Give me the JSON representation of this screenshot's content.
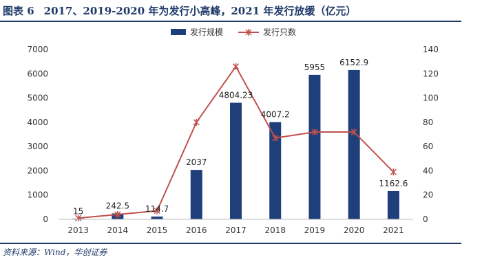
{
  "figure": {
    "number": "图表 6",
    "caption": "2017、2019-2020 年为发行小高峰，2021 年发行放缓（亿元）",
    "source": "资料来源：Wind，华创证券"
  },
  "colors": {
    "bar": "#1f3f7a",
    "line": "#c0504d",
    "rule": "#1f3a6a"
  },
  "chart_data": {
    "type": "bar",
    "categories": [
      "2013",
      "2014",
      "2015",
      "2016",
      "2017",
      "2018",
      "2019",
      "2020",
      "2021"
    ],
    "series": [
      {
        "name": "发行规模",
        "type": "bar",
        "axis": "left",
        "values": [
          15,
          242.5,
          114.7,
          2037,
          4804.23,
          4007.2,
          5955,
          6152.9,
          1162.6
        ],
        "labels": [
          "15",
          "242.5",
          "114.7",
          "2037",
          "4804.23",
          "4007.2",
          "5955",
          "6152.9",
          "1162.6"
        ]
      },
      {
        "name": "发行只数",
        "type": "line",
        "axis": "right",
        "values": [
          1,
          4,
          7,
          80,
          126,
          67,
          72,
          72,
          39
        ]
      }
    ],
    "y_left": {
      "min": 0,
      "max": 7000,
      "ticks": [
        0,
        1000,
        2000,
        3000,
        4000,
        5000,
        6000,
        7000
      ]
    },
    "y_right": {
      "min": 0,
      "max": 140,
      "ticks": [
        0,
        20,
        40,
        60,
        80,
        100,
        120,
        140
      ]
    },
    "legend_position": "top-center",
    "grid": false
  }
}
